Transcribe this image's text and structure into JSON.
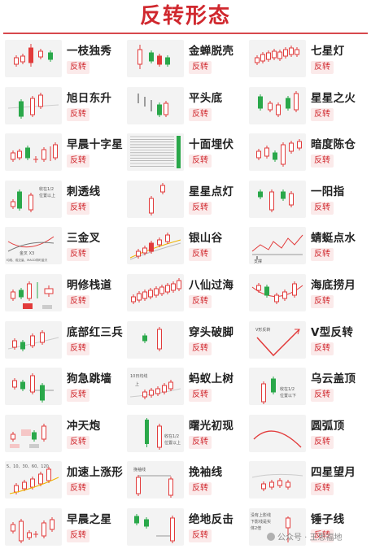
{
  "page_title": "反转形态",
  "badge_label": "反转",
  "patterns": [
    {
      "name": "一枝独秀",
      "icon": "candles-one-tall-red"
    },
    {
      "name": "金蝉脱壳",
      "icon": "candles-red-green-mixed"
    },
    {
      "name": "七星灯",
      "icon": "candles-seven-small"
    },
    {
      "name": "旭日东升",
      "icon": "candles-green-then-red"
    },
    {
      "name": "平头底",
      "icon": "candles-flat-bottom"
    },
    {
      "name": "星星之火",
      "icon": "candles-spark"
    },
    {
      "name": "早晨十字星",
      "icon": "candles-morning-doji"
    },
    {
      "name": "十面埋伏",
      "icon": "candles-ambush"
    },
    {
      "name": "暗度陈仓",
      "icon": "candles-hidden-rise"
    },
    {
      "name": "刺透线",
      "icon": "candles-piercing"
    },
    {
      "name": "星星点灯",
      "icon": "candles-star-lamp"
    },
    {
      "name": "一阳指",
      "icon": "candles-one-yang"
    },
    {
      "name": "三金叉",
      "icon": "lines-golden-cross"
    },
    {
      "name": "银山谷",
      "icon": "candles-silver-valley"
    },
    {
      "name": "蜻蜓点水",
      "icon": "line-dragonfly"
    },
    {
      "name": "明修栈道",
      "icon": "candles-open-road"
    },
    {
      "name": "八仙过海",
      "icon": "candles-eight-rising"
    },
    {
      "name": "海底捞月",
      "icon": "candles-moon-scoop"
    },
    {
      "name": "底部红三兵",
      "icon": "candles-three-soldiers"
    },
    {
      "name": "穿头破脚",
      "icon": "candles-engulfing"
    },
    {
      "name": "V型反转",
      "icon": "line-v-reversal"
    },
    {
      "name": "狗急跳墙",
      "icon": "candles-jump-wall"
    },
    {
      "name": "蚂蚁上树",
      "icon": "candles-ants-climb"
    },
    {
      "name": "乌云盖顶",
      "icon": "candles-dark-cloud"
    },
    {
      "name": "冲天炮",
      "icon": "candles-skyrocket"
    },
    {
      "name": "曙光初现",
      "icon": "candles-dawn"
    },
    {
      "name": "圆弧顶",
      "icon": "line-arc-top"
    },
    {
      "name": "加速上涨形",
      "icon": "candles-accelerate"
    },
    {
      "name": "挽袖线",
      "icon": "candles-sleeve"
    },
    {
      "name": "四星望月",
      "icon": "candles-four-stars"
    },
    {
      "name": "早晨之星",
      "icon": "candles-morning-star"
    },
    {
      "name": "绝地反击",
      "icon": "candles-counterattack"
    },
    {
      "name": "锤子线",
      "icon": "candles-hammer"
    }
  ],
  "thumb_notes": {
    "piercing_note1": "收在1/2",
    "piercing_note2": "位置以上",
    "golden_cross": "金叉 X3",
    "golden_cross_sub": "均线、成交量、MACD同时金叉",
    "dragonfly_note": "支撑",
    "v_note": "V形反转",
    "ants_note1": "10日均线",
    "ants_note2": "上",
    "cloud_note1": "收在1/2",
    "cloud_note2": "位置以下",
    "dawn_note1": "收在1/2",
    "dawn_note2": "位置以上",
    "accel_note": "5、10、30、60、120",
    "sleeve_note": "挽袖线",
    "hammer_note1": "没有上影线",
    "hammer_note2": "下影线是实",
    "hammer_note3": "体2倍"
  },
  "watermark": "公众号 · 王思福地",
  "colors": {
    "title": "#d0282e",
    "up": "#e23b3b",
    "down": "#2aa84a",
    "line": "#e23b3b",
    "ma": "#f0b400"
  }
}
